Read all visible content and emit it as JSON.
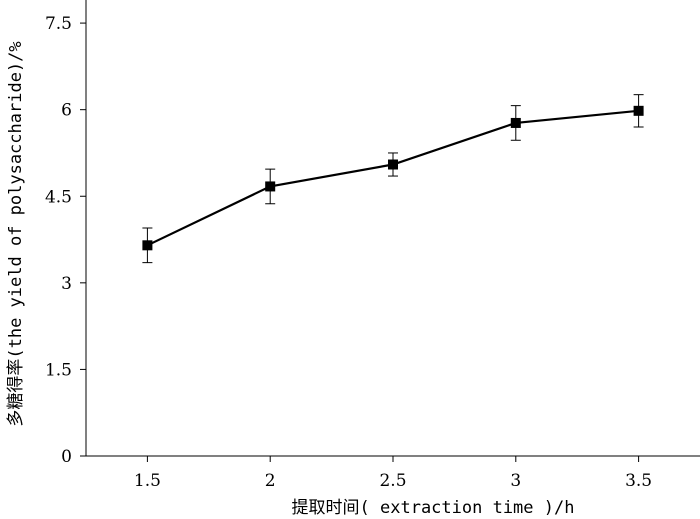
{
  "chart_data": {
    "type": "line",
    "x": [
      1.5,
      2,
      2.5,
      3,
      3.5
    ],
    "series": [
      {
        "values": [
          3.65,
          4.67,
          5.05,
          5.77,
          5.98
        ],
        "error": [
          0.3,
          0.3,
          0.2,
          0.3,
          0.28
        ]
      }
    ],
    "xlabel": "提取时间( extraction time )/h",
    "ylabel": "多糖得率(the yield of polysaccharide)/%",
    "xlim": [
      1.25,
      3.75
    ],
    "ylim": [
      0,
      7.9
    ],
    "xticks": [
      1.5,
      2,
      2.5,
      3,
      3.5
    ],
    "xtick_labels": [
      "1.5",
      "2",
      "2.5",
      "3",
      "3.5"
    ],
    "yticks": [
      0,
      1.5,
      3,
      4.5,
      6,
      7.5
    ],
    "ytick_labels": [
      "0",
      "1.5",
      "3",
      "4.5",
      "6",
      "7.5"
    ],
    "grid": false,
    "marker": "square",
    "color": "#000000"
  }
}
